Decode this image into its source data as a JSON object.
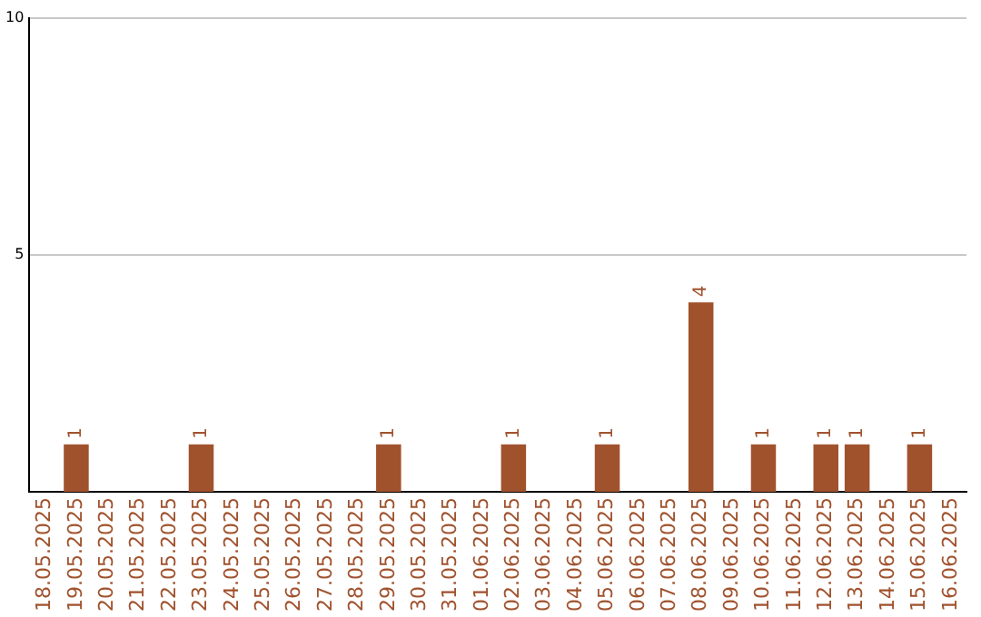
{
  "chart_data": {
    "type": "bar",
    "categories": [
      "18.05.2025",
      "19.05.2025",
      "20.05.2025",
      "21.05.2025",
      "22.05.2025",
      "23.05.2025",
      "24.05.2025",
      "25.05.2025",
      "26.05.2025",
      "27.05.2025",
      "28.05.2025",
      "29.05.2025",
      "30.05.2025",
      "31.05.2025",
      "01.06.2025",
      "02.06.2025",
      "03.06.2025",
      "04.06.2025",
      "05.06.2025",
      "06.06.2025",
      "07.06.2025",
      "08.06.2025",
      "09.06.2025",
      "10.06.2025",
      "11.06.2025",
      "12.06.2025",
      "13.06.2025",
      "14.06.2025",
      "15.06.2025",
      "16.06.2025"
    ],
    "values": [
      0,
      1,
      0,
      0,
      0,
      1,
      0,
      0,
      0,
      0,
      0,
      1,
      0,
      0,
      0,
      1,
      0,
      0,
      1,
      0,
      0,
      4,
      0,
      1,
      0,
      1,
      1,
      0,
      1,
      0
    ],
    "value_labels": [
      null,
      "1",
      null,
      null,
      null,
      "1",
      null,
      null,
      null,
      null,
      null,
      "1",
      null,
      null,
      null,
      "1",
      null,
      null,
      "1",
      null,
      null,
      "4",
      null,
      "1",
      null,
      "1",
      "1",
      null,
      "1",
      null
    ],
    "color": "#a0522d",
    "ylim": [
      0,
      10
    ],
    "yticks": [
      5,
      10
    ],
    "grid": "y"
  }
}
